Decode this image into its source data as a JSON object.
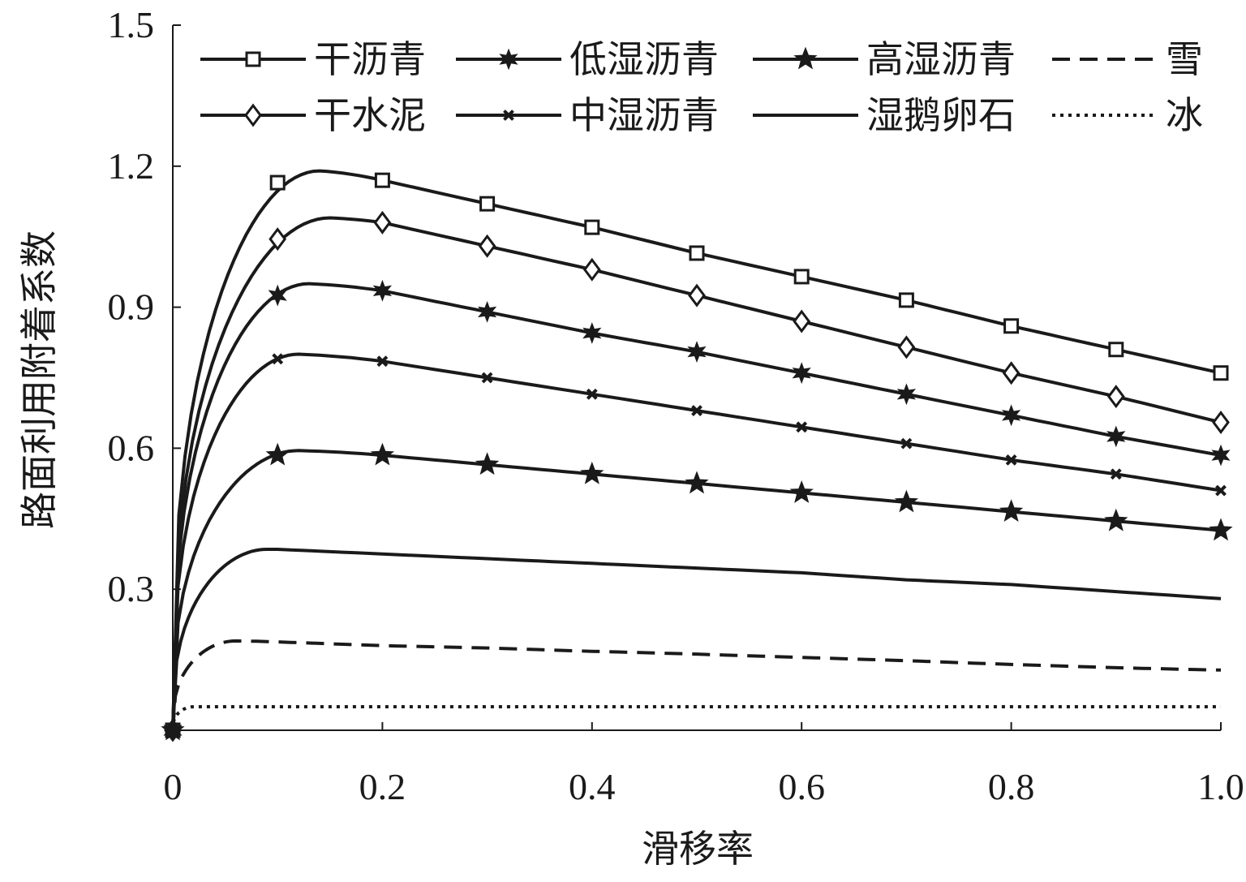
{
  "chart_data": {
    "type": "line",
    "xlabel": "滑移率",
    "ylabel": "路面利用附着系数",
    "xlim": [
      0,
      1.0
    ],
    "ylim": [
      0,
      1.5
    ],
    "xticks": [
      "0",
      "0.2",
      "0.4",
      "0.6",
      "0.8",
      "1.0"
    ],
    "yticks": [
      "0.3",
      "0.6",
      "0.9",
      "1.2",
      "1.5"
    ],
    "legend_position": "top",
    "grid": false,
    "x": [
      0,
      0.1,
      0.2,
      0.3,
      0.4,
      0.5,
      0.6,
      0.7,
      0.8,
      0.9,
      1.0
    ],
    "series": [
      {
        "name": "干沥青",
        "marker": "square",
        "dash": "solid",
        "peak": [
          0.14,
          1.19
        ],
        "values": [
          0,
          1.165,
          1.17,
          1.12,
          1.07,
          1.015,
          0.965,
          0.915,
          0.86,
          0.81,
          0.76
        ]
      },
      {
        "name": "干水泥",
        "marker": "diamond",
        "dash": "solid",
        "peak": [
          0.15,
          1.09
        ],
        "values": [
          0,
          1.045,
          1.08,
          1.03,
          0.98,
          0.925,
          0.87,
          0.815,
          0.76,
          0.71,
          0.655
        ]
      },
      {
        "name": "低湿沥青",
        "marker": "star6",
        "dash": "solid",
        "peak": [
          0.13,
          0.95
        ],
        "values": [
          0,
          0.925,
          0.935,
          0.89,
          0.845,
          0.805,
          0.76,
          0.715,
          0.67,
          0.625,
          0.585
        ]
      },
      {
        "name": "中湿沥青",
        "marker": "cross",
        "dash": "solid",
        "peak": [
          0.12,
          0.8
        ],
        "values": [
          0,
          0.79,
          0.785,
          0.75,
          0.715,
          0.68,
          0.645,
          0.61,
          0.575,
          0.545,
          0.51
        ]
      },
      {
        "name": "高湿沥青",
        "marker": "star5",
        "dash": "solid",
        "peak": [
          0.12,
          0.595
        ],
        "values": [
          0,
          0.585,
          0.585,
          0.565,
          0.545,
          0.525,
          0.505,
          0.485,
          0.465,
          0.445,
          0.425
        ]
      },
      {
        "name": "湿鹅卵石",
        "marker": "none",
        "dash": "solid",
        "peak": [
          0.09,
          0.385
        ],
        "values": [
          0,
          0.385,
          0.375,
          0.365,
          0.355,
          0.345,
          0.335,
          0.32,
          0.31,
          0.295,
          0.28
        ]
      },
      {
        "name": "雪",
        "marker": "none",
        "dash": "dashed",
        "peak": [
          0.06,
          0.19
        ],
        "values": [
          0,
          0.188,
          0.18,
          0.175,
          0.168,
          0.162,
          0.155,
          0.148,
          0.14,
          0.133,
          0.128
        ]
      },
      {
        "name": "冰",
        "marker": "none",
        "dash": "dotted",
        "peak": [
          0.02,
          0.05
        ],
        "values": [
          0,
          0.05,
          0.05,
          0.05,
          0.05,
          0.05,
          0.05,
          0.05,
          0.05,
          0.05,
          0.05
        ]
      }
    ]
  }
}
